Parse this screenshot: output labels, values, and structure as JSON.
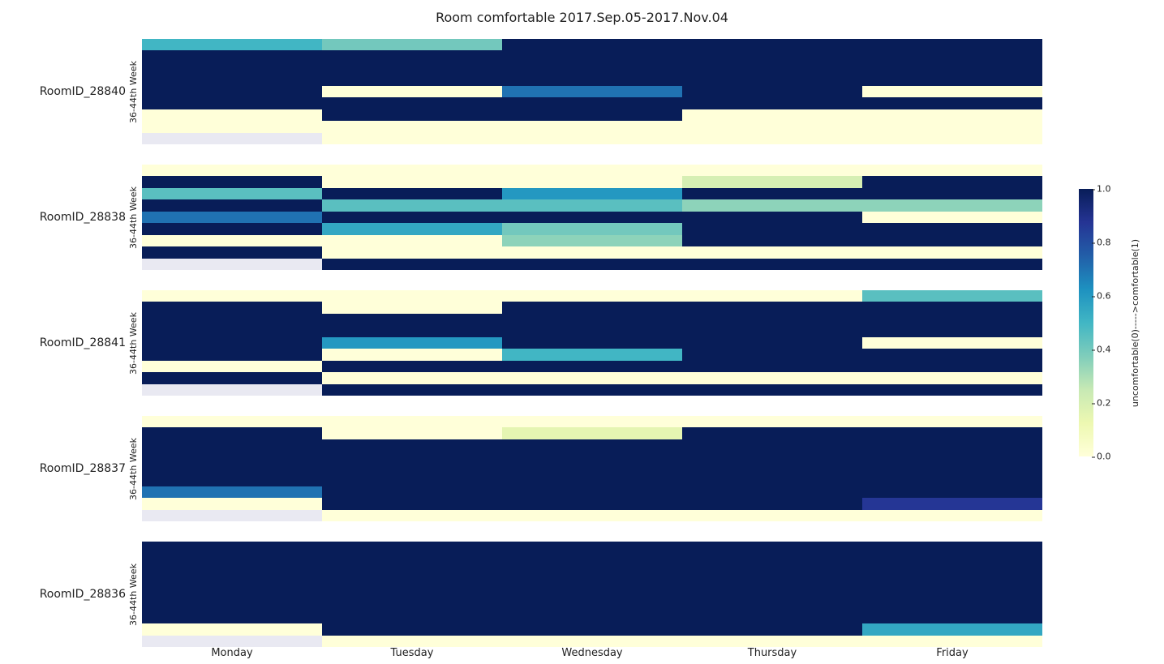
{
  "title": "Room comfortable  2017.Sep.05-2017.Nov.04",
  "title_fontsize": 16,
  "background_color": "#ffffff",
  "xlabels": [
    "Monday",
    "Tuesday",
    "Wednesday",
    "Thursday",
    "Friday"
  ],
  "label_fontsize": 13,
  "ytick_label": "36-44th Week",
  "ytick_fontsize": 11,
  "colormap": {
    "name": "YlGnBu",
    "null_color": "#e9e9f2",
    "stops": [
      {
        "v": 0.0,
        "c": "#ffffd9"
      },
      {
        "v": 0.125,
        "c": "#edf8b1"
      },
      {
        "v": 0.25,
        "c": "#c7e9b4"
      },
      {
        "v": 0.375,
        "c": "#7fcdbb"
      },
      {
        "v": 0.5,
        "c": "#41b6c4"
      },
      {
        "v": 0.625,
        "c": "#1d91c0"
      },
      {
        "v": 0.75,
        "c": "#225ea8"
      },
      {
        "v": 0.875,
        "c": "#253494"
      },
      {
        "v": 1.0,
        "c": "#081d58"
      }
    ]
  },
  "colorbar": {
    "label": "uncomfortable(0)----->comfortable(1)",
    "ticks": [
      0.0,
      0.2,
      0.4,
      0.6,
      0.8,
      1.0
    ],
    "tick_fontsize": 11
  },
  "panels": [
    {
      "id": "RoomID_28840",
      "type": "heatmap",
      "nrows": 9,
      "ncols": 5,
      "data": [
        [
          0.5,
          0.4,
          1.0,
          1.0,
          1.0
        ],
        [
          1.0,
          1.0,
          1.0,
          1.0,
          1.0
        ],
        [
          1.0,
          1.0,
          1.0,
          1.0,
          1.0
        ],
        [
          1.0,
          1.0,
          1.0,
          1.0,
          1.0
        ],
        [
          1.0,
          0.0,
          0.7,
          1.0,
          0.0
        ],
        [
          1.0,
          1.0,
          1.0,
          1.0,
          1.0
        ],
        [
          0.0,
          1.0,
          1.0,
          0.0,
          0.0
        ],
        [
          0.0,
          0.0,
          0.0,
          0.0,
          0.0
        ],
        [
          null,
          0.0,
          0.0,
          0.0,
          0.0
        ]
      ]
    },
    {
      "id": "RoomID_28838",
      "type": "heatmap",
      "nrows": 9,
      "ncols": 5,
      "data": [
        [
          0.0,
          0.0,
          0.0,
          0.0,
          0.0
        ],
        [
          1.0,
          0.0,
          0.0,
          0.2,
          1.0
        ],
        [
          0.45,
          1.0,
          0.6,
          1.0,
          1.0
        ],
        [
          1.0,
          0.45,
          0.45,
          0.35,
          0.35
        ],
        [
          0.7,
          1.0,
          1.0,
          1.0,
          0.0
        ],
        [
          1.0,
          0.55,
          0.4,
          1.0,
          1.0
        ],
        [
          0.0,
          0.0,
          0.35,
          1.0,
          1.0
        ],
        [
          1.0,
          0.0,
          0.0,
          0.0,
          0.0
        ],
        [
          null,
          1.0,
          1.0,
          1.0,
          1.0
        ]
      ]
    },
    {
      "id": "RoomID_28841",
      "type": "heatmap",
      "nrows": 9,
      "ncols": 5,
      "data": [
        [
          0.0,
          0.0,
          0.0,
          0.0,
          0.45
        ],
        [
          1.0,
          0.0,
          1.0,
          1.0,
          1.0
        ],
        [
          1.0,
          1.0,
          1.0,
          1.0,
          1.0
        ],
        [
          1.0,
          1.0,
          1.0,
          1.0,
          1.0
        ],
        [
          1.0,
          0.6,
          1.0,
          1.0,
          0.0
        ],
        [
          1.0,
          0.0,
          0.5,
          1.0,
          1.0
        ],
        [
          0.0,
          1.0,
          1.0,
          1.0,
          1.0
        ],
        [
          1.0,
          0.0,
          0.0,
          0.0,
          0.0
        ],
        [
          null,
          1.0,
          1.0,
          1.0,
          1.0
        ]
      ]
    },
    {
      "id": "RoomID_28837",
      "type": "heatmap",
      "nrows": 9,
      "ncols": 5,
      "data": [
        [
          0.0,
          0.0,
          0.0,
          0.0,
          0.0
        ],
        [
          1.0,
          0.0,
          0.15,
          1.0,
          1.0
        ],
        [
          1.0,
          1.0,
          1.0,
          1.0,
          1.0
        ],
        [
          1.0,
          1.0,
          1.0,
          1.0,
          1.0
        ],
        [
          1.0,
          1.0,
          1.0,
          1.0,
          1.0
        ],
        [
          1.0,
          1.0,
          1.0,
          1.0,
          1.0
        ],
        [
          0.7,
          1.0,
          1.0,
          1.0,
          1.0
        ],
        [
          0.0,
          1.0,
          1.0,
          1.0,
          0.87
        ],
        [
          null,
          0.0,
          0.0,
          0.0,
          0.0
        ]
      ]
    },
    {
      "id": "RoomID_28836",
      "type": "heatmap",
      "nrows": 9,
      "ncols": 5,
      "data": [
        [
          1.0,
          1.0,
          1.0,
          1.0,
          1.0
        ],
        [
          1.0,
          1.0,
          1.0,
          1.0,
          1.0
        ],
        [
          1.0,
          1.0,
          1.0,
          1.0,
          1.0
        ],
        [
          1.0,
          1.0,
          1.0,
          1.0,
          1.0
        ],
        [
          1.0,
          1.0,
          1.0,
          1.0,
          1.0
        ],
        [
          1.0,
          1.0,
          1.0,
          1.0,
          1.0
        ],
        [
          1.0,
          1.0,
          1.0,
          1.0,
          1.0
        ],
        [
          0.0,
          1.0,
          1.0,
          1.0,
          0.55
        ],
        [
          null,
          0.0,
          0.0,
          0.0,
          0.0
        ]
      ]
    }
  ]
}
